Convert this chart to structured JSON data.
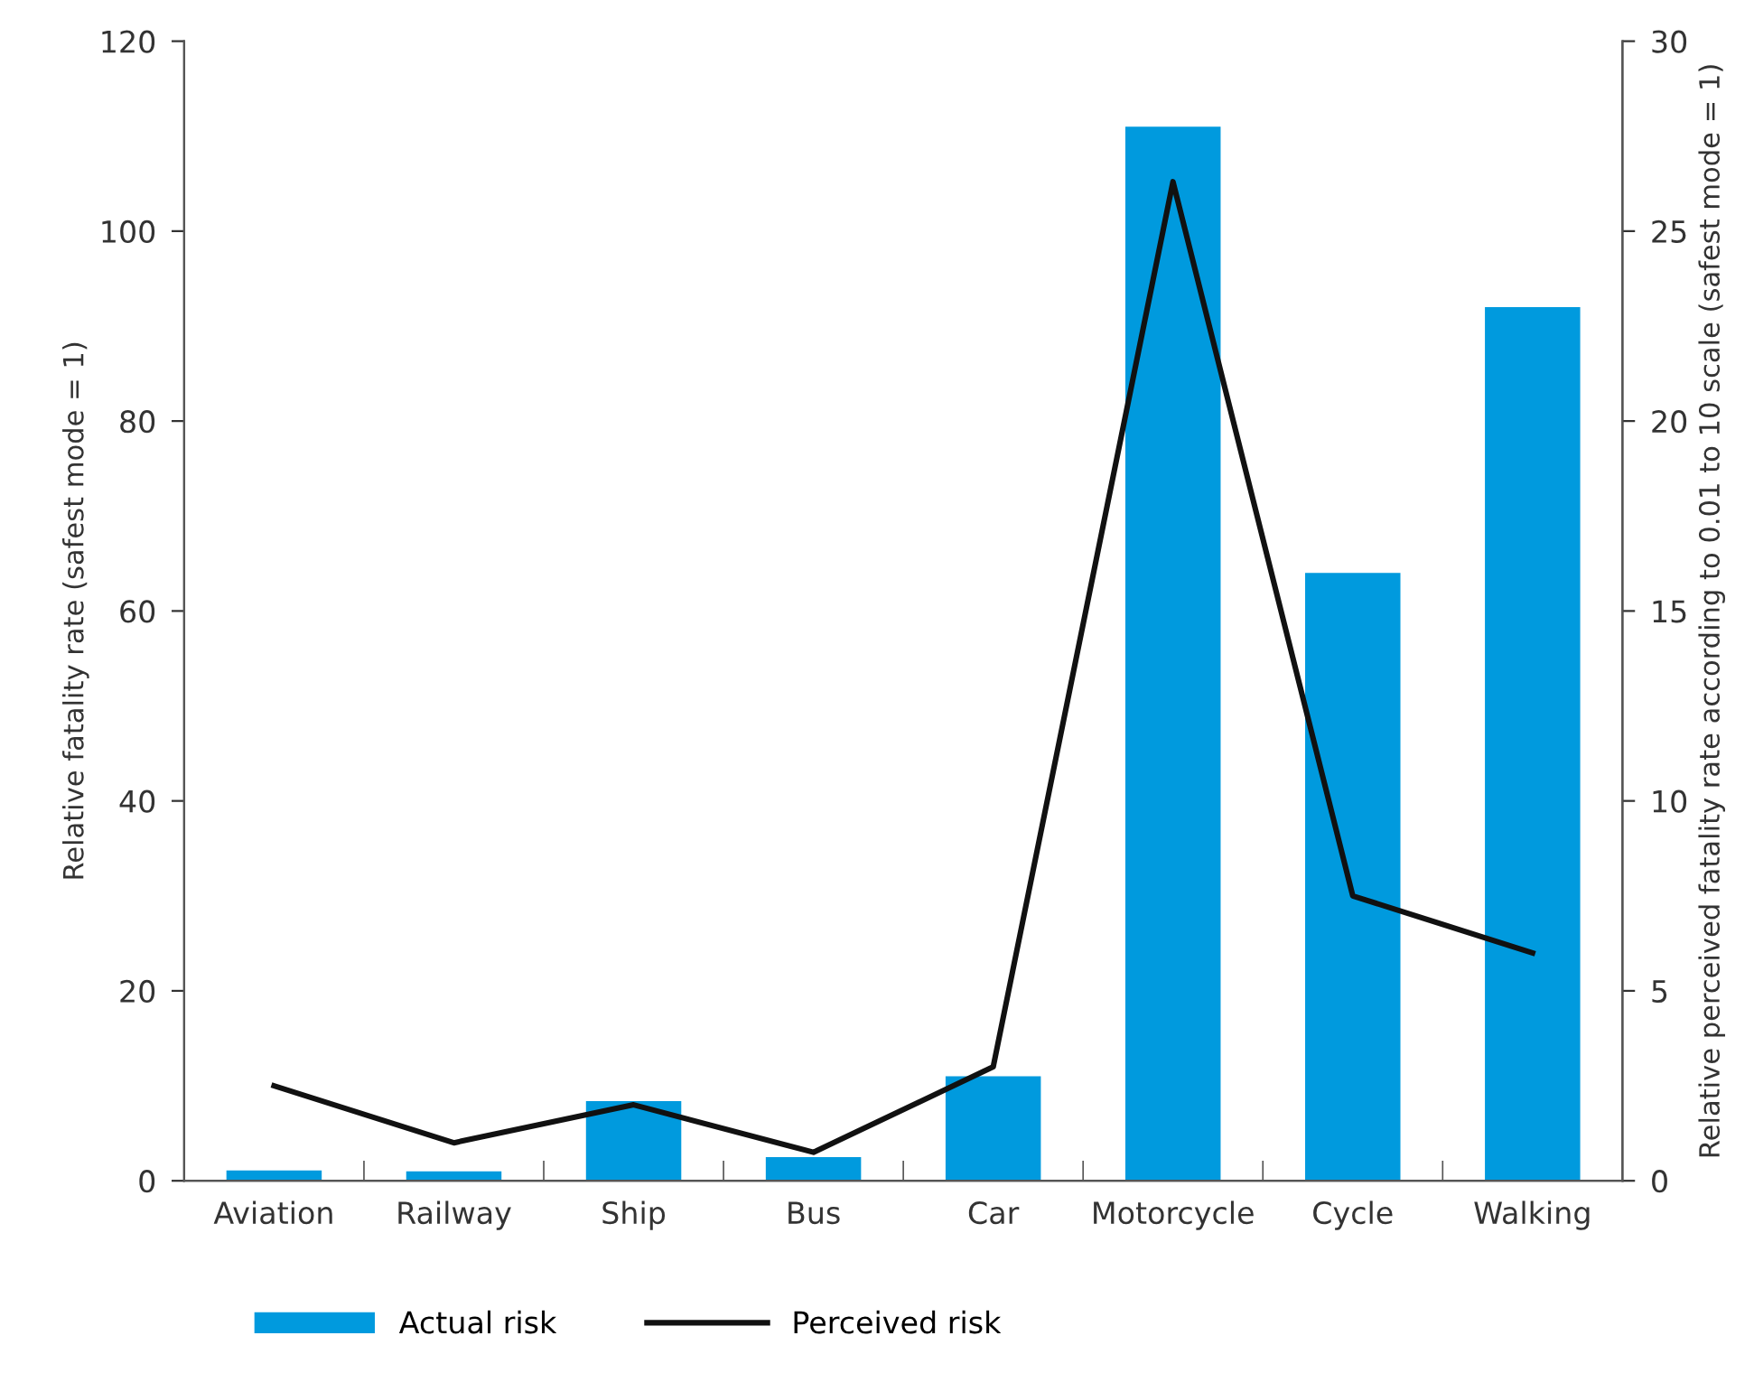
{
  "chart_data": {
    "type": "bar",
    "categories": [
      "Aviation",
      "Railway",
      "Ship",
      "Bus",
      "Car",
      "Motorcycle",
      "Cycle",
      "Walking"
    ],
    "ylabel": "Relative fatality rate (safest mode = 1)",
    "y2label": "Relative perceived fatality rate according to 0.01 to 10 scale (safest mode = 1)",
    "ylim": [
      0,
      120
    ],
    "yticks": [
      0,
      20,
      40,
      60,
      80,
      100,
      120
    ],
    "y2lim": [
      0,
      30
    ],
    "y2ticks": [
      0,
      5,
      10,
      15,
      20,
      25,
      30
    ],
    "series": [
      {
        "name": "Actual risk",
        "color": "#009ade",
        "values": [
          1.1,
          1,
          8.4,
          2.5,
          11,
          111,
          64,
          92
        ]
      },
      {
        "name": "Perceived risk",
        "type": "line",
        "axis": "y2",
        "color": "#111111",
        "values": [
          2.5,
          1.0,
          2.0,
          0.75,
          3.0,
          26.3,
          7.5,
          6.0
        ]
      }
    ],
    "legend": "bottom",
    "grid": false,
    "marker": "none",
    "line_style": "solid"
  }
}
